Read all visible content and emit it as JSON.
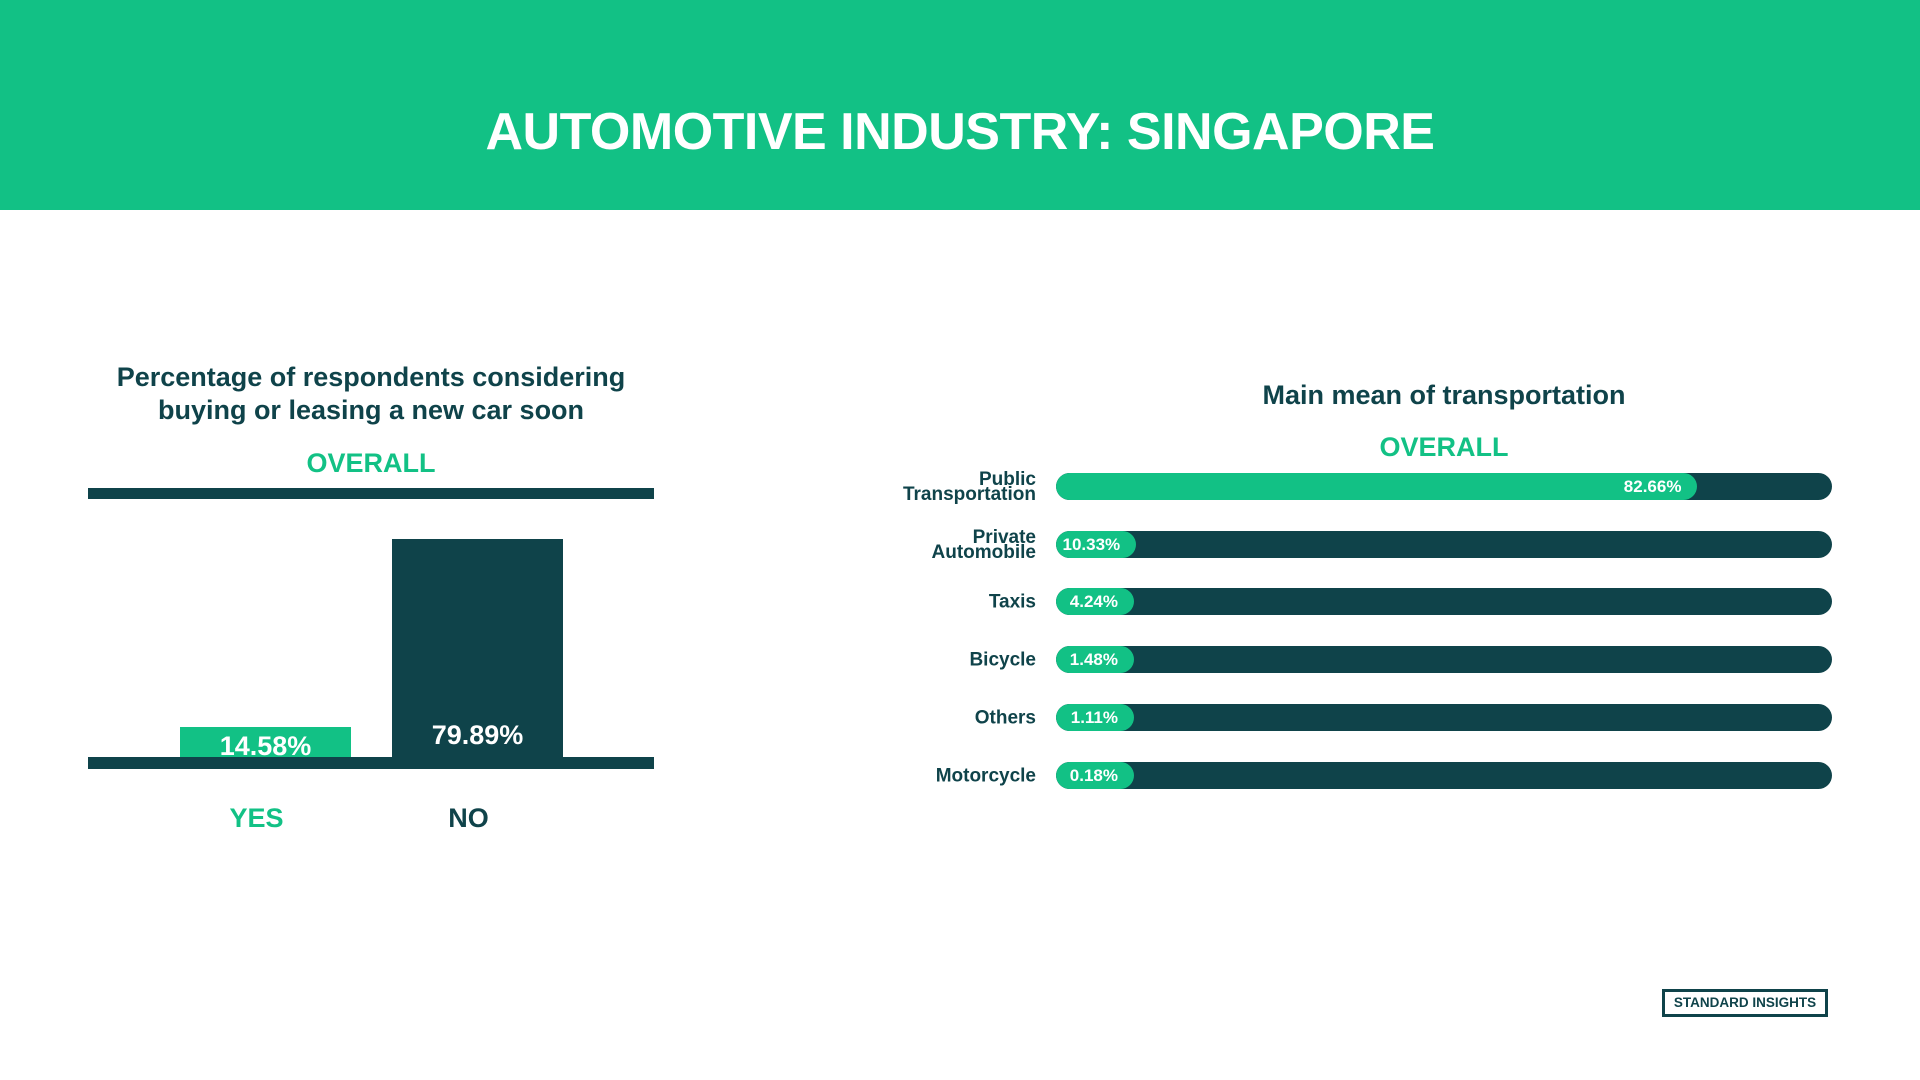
{
  "header": {
    "title": "AUTOMOTIVE INDUSTRY: SINGAPORE"
  },
  "colors": {
    "green": "#12c185",
    "dark": "#0f434a",
    "white": "#ffffff"
  },
  "logo": {
    "text": "STANDARD INSIGHTS"
  },
  "chart_data": [
    {
      "type": "bar",
      "title": "Percentage of respondents considering buying or leasing a new car soon",
      "subtitle": "OVERALL",
      "categories": [
        "YES",
        "NO"
      ],
      "values": [
        14.58,
        79.89
      ],
      "value_labels": [
        "14.58%",
        "79.89%"
      ],
      "colors": [
        "#12c185",
        "#0f434a"
      ],
      "category_label_colors": [
        "#12c185",
        "#0f434a"
      ],
      "ylim": [
        0,
        100
      ]
    },
    {
      "type": "bar",
      "orientation": "horizontal",
      "title": "Main mean of transportation",
      "subtitle": "OVERALL",
      "categories": [
        "Public\nTransportation",
        "Private\nAutomobile",
        "Taxis",
        "Bicycle",
        "Others",
        "Motorcycle"
      ],
      "values": [
        82.66,
        10.33,
        4.24,
        1.48,
        1.11,
        0.18
      ],
      "value_labels": [
        "82.66%",
        "10.33%",
        "4.24%",
        "1.48%",
        "1.11%",
        "0.18%"
      ],
      "xlim": [
        0,
        100
      ]
    }
  ]
}
